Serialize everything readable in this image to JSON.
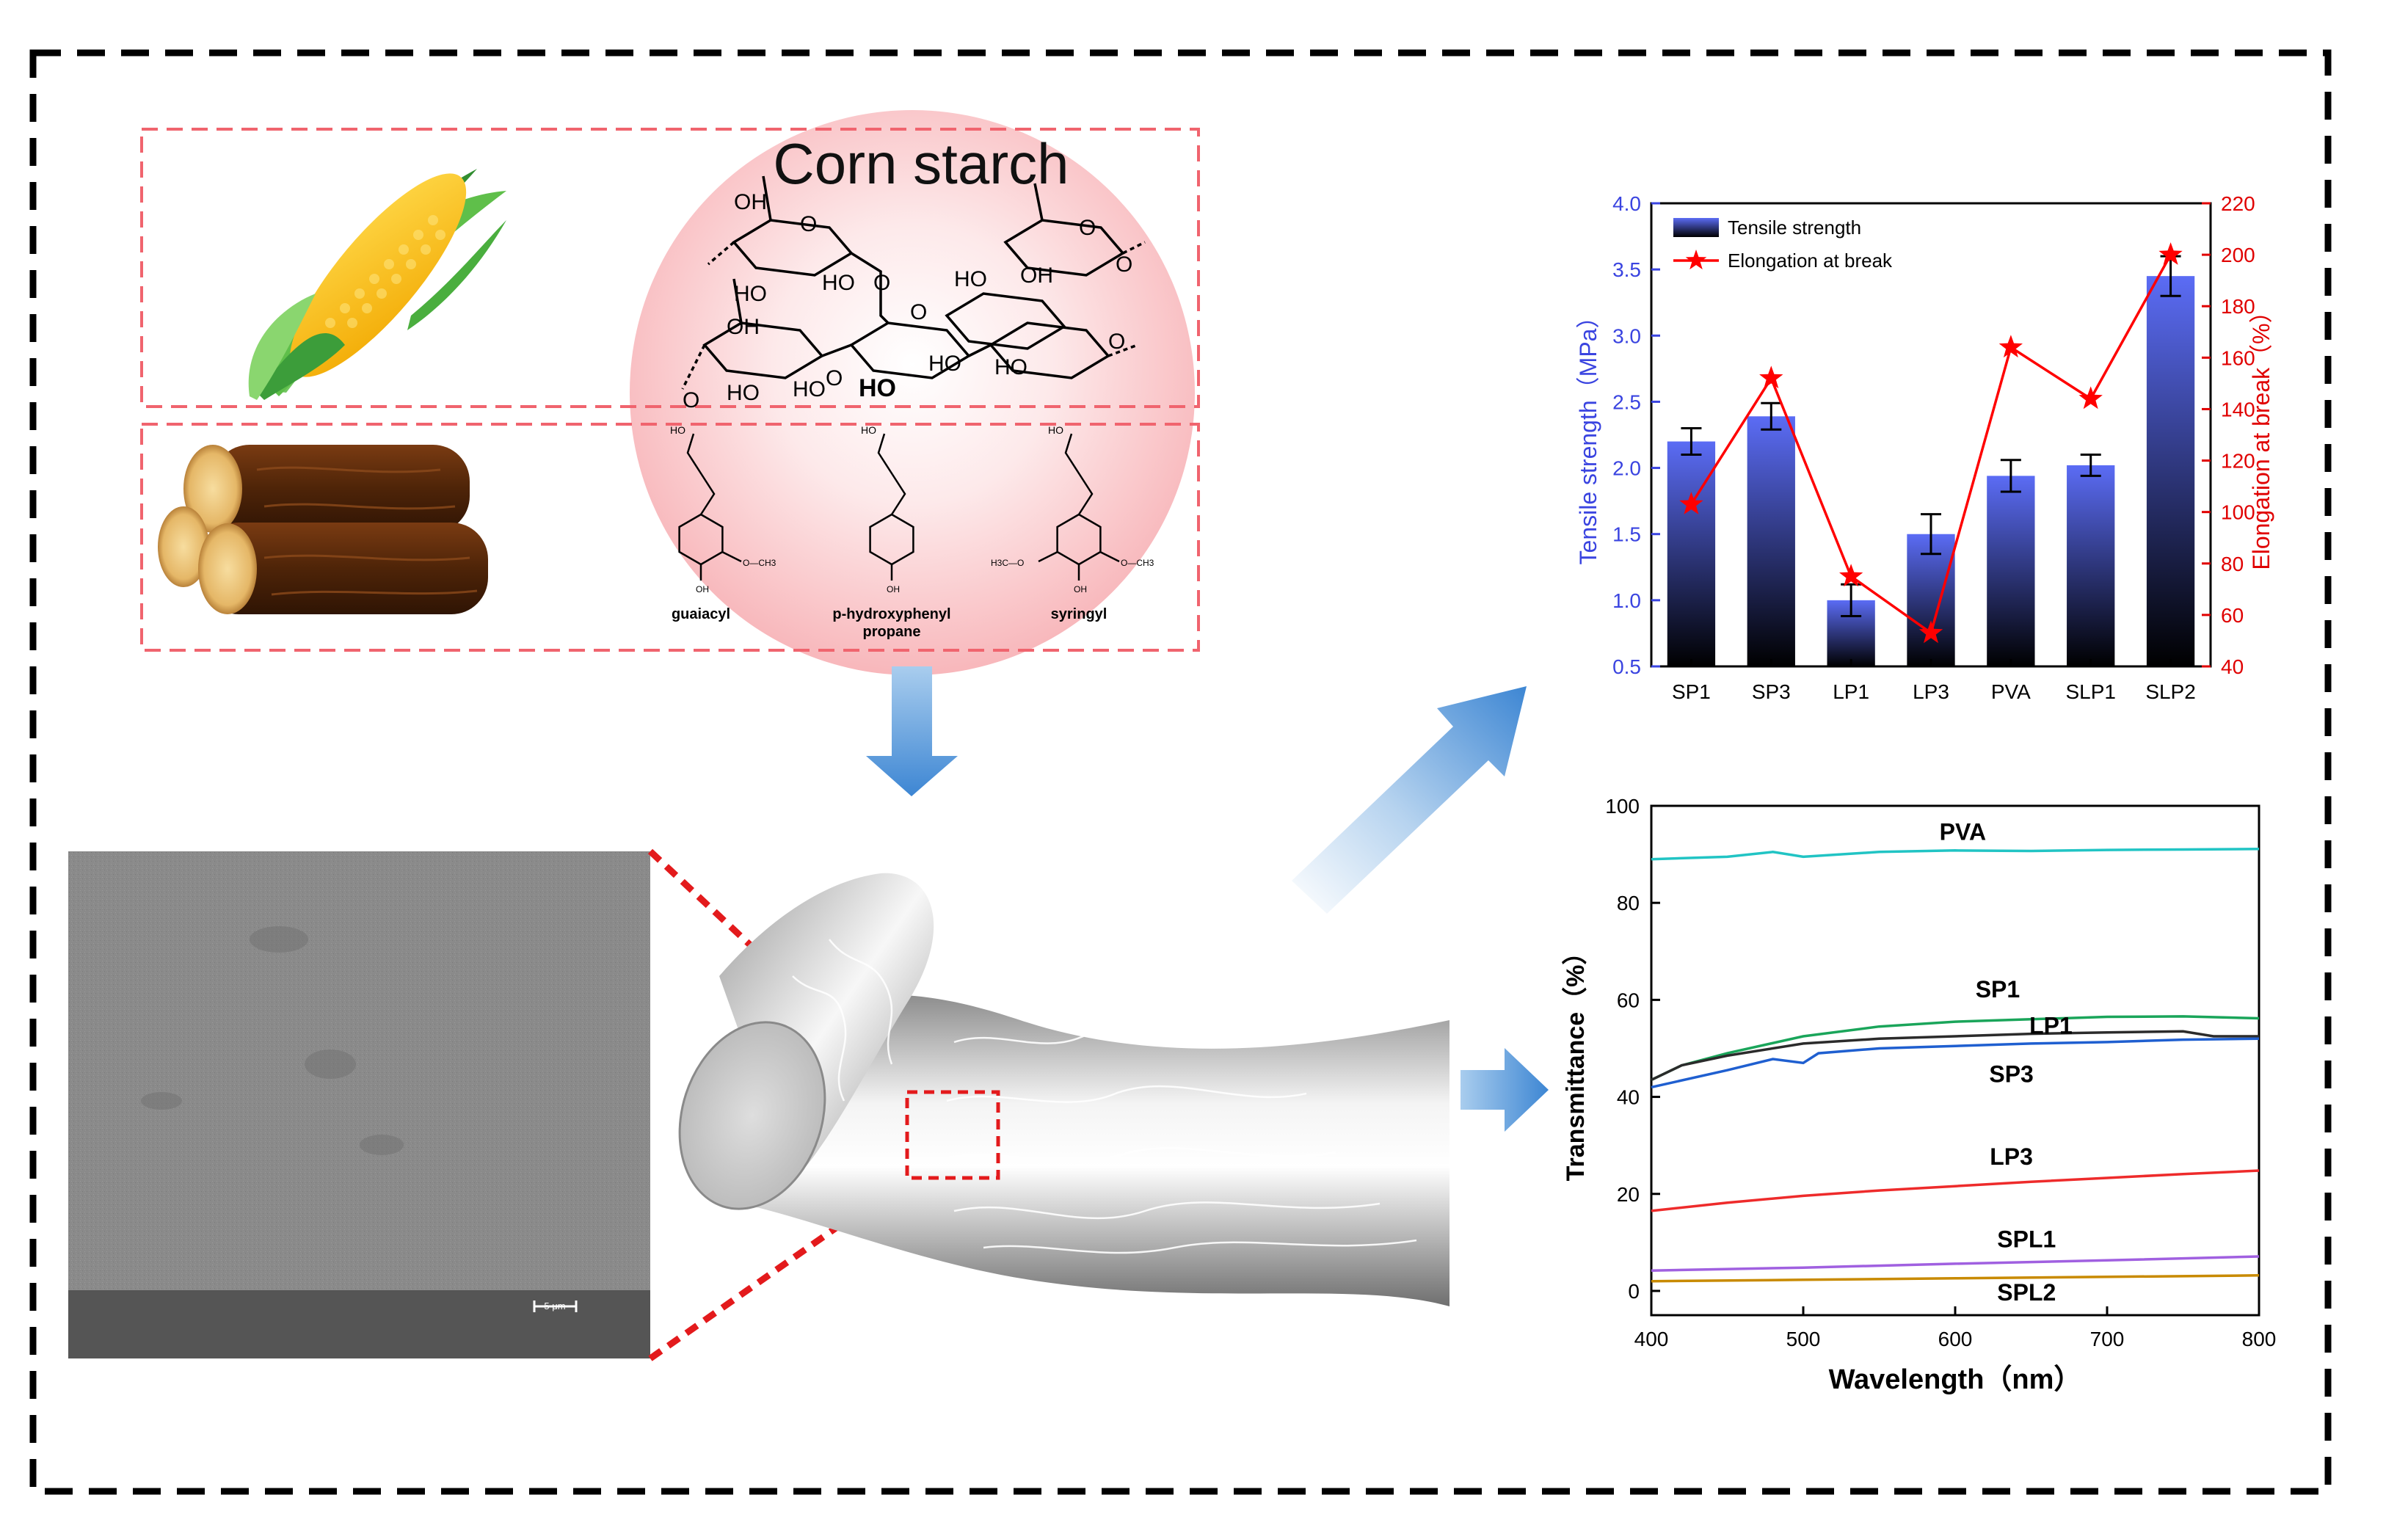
{
  "starch": {
    "title": "Corn starch",
    "oh_labels": [
      "OH",
      "HO",
      "HO",
      "O",
      "O",
      "OH",
      "HO",
      "O",
      "O",
      "O",
      "HO",
      "HO",
      "HO",
      "OH",
      "HO",
      "HO",
      "O",
      "O",
      "O"
    ]
  },
  "lignin": {
    "units": [
      {
        "label": "guaiacyl",
        "label2": "",
        "oh": "HO",
        "ring_oh": "OH",
        "methoxy_right": "O—CH3",
        "methoxy_left": ""
      },
      {
        "label": "p-hydroxyphenyl",
        "label2": "propane",
        "oh": "HO",
        "ring_oh": "OH",
        "methoxy_right": "",
        "methoxy_left": ""
      },
      {
        "label": "syringyl",
        "label2": "",
        "oh": "HO",
        "ring_oh": "OH",
        "methoxy_right": "O—CH3",
        "methoxy_left": "H3C—O"
      }
    ]
  },
  "sem": {
    "scale_bar": "5 μm"
  },
  "colors": {
    "dashed_box": "#f0646e",
    "arrow": "#4f95d8",
    "zoom_line": "#e31a1c",
    "bar_top": "#5b6cf5",
    "bar_bottom": "#000000",
    "elong": "#ff0000",
    "left_axis": "#3a44e0",
    "right_axis": "#e00000"
  },
  "chart_data": [
    {
      "type": "bar",
      "categories": [
        "SP1",
        "SP3",
        "LP1",
        "LP3",
        "PVA",
        "SLP1",
        "SLP2"
      ],
      "series": [
        {
          "name": "Tensile strength",
          "axis": "left",
          "values": [
            2.2,
            2.39,
            1.0,
            1.5,
            1.94,
            2.02,
            3.45
          ],
          "errors": [
            0.1,
            0.1,
            0.12,
            0.15,
            0.12,
            0.08,
            0.15
          ]
        },
        {
          "name": "Elongation at break",
          "axis": "right",
          "type": "line",
          "values": [
            103,
            152,
            75,
            53,
            164,
            144,
            200
          ]
        }
      ],
      "ylabel": "Tensile strength（MPa）",
      "ylabel2": "Elongation at break（%）",
      "ylim": [
        0.5,
        4.0
      ],
      "ylim2": [
        40,
        220
      ],
      "yticks": [
        "0.5",
        "1.0",
        "1.5",
        "2.0",
        "2.5",
        "3.0",
        "3.5",
        "4.0"
      ],
      "yticks2": [
        "40",
        "60",
        "80",
        "100",
        "120",
        "140",
        "160",
        "180",
        "200",
        "220"
      ],
      "legend": [
        "Tensile strength",
        "Elongation at break"
      ],
      "legend_position": "top-left"
    },
    {
      "type": "line",
      "xlabel": "Wavelength（nm）",
      "ylabel": "Transmittance（%）",
      "xlim": [
        400,
        800
      ],
      "ylim": [
        -5,
        100
      ],
      "xticks": [
        "400",
        "500",
        "600",
        "700",
        "800"
      ],
      "yticks": [
        "0",
        "20",
        "40",
        "60",
        "80",
        "100"
      ],
      "series": [
        {
          "name": "PVA",
          "color": "#21c4c4",
          "x": [
            400,
            450,
            480,
            500,
            550,
            600,
            650,
            700,
            750,
            800
          ],
          "y": [
            89,
            89.5,
            90.5,
            89.5,
            90.5,
            90.8,
            90.7,
            90.9,
            91.0,
            91.1
          ]
        },
        {
          "name": "SP1",
          "color": "#1aa55a",
          "x": [
            400,
            420,
            450,
            500,
            550,
            600,
            650,
            700,
            750,
            800
          ],
          "y": [
            43.5,
            46.5,
            49,
            52.5,
            54.5,
            55.5,
            56,
            56.5,
            56.6,
            56.2
          ]
        },
        {
          "name": "LP1",
          "color": "#2b2b2b",
          "x": [
            400,
            420,
            450,
            500,
            550,
            600,
            650,
            700,
            750,
            770,
            800
          ],
          "y": [
            43.5,
            46.5,
            48.5,
            51,
            52,
            52.5,
            53,
            53.3,
            53.5,
            52.5,
            52.5
          ]
        },
        {
          "name": "SP3",
          "color": "#1f5fd0",
          "x": [
            400,
            450,
            480,
            500,
            510,
            550,
            600,
            650,
            700,
            750,
            800
          ],
          "y": [
            42,
            45.5,
            47.8,
            47.0,
            49,
            50,
            50.5,
            51,
            51.3,
            51.8,
            52
          ]
        },
        {
          "name": "LP3",
          "color": "#ee2b2b",
          "x": [
            400,
            450,
            500,
            550,
            600,
            650,
            700,
            750,
            800
          ],
          "y": [
            16.5,
            18.2,
            19.6,
            20.7,
            21.6,
            22.5,
            23.3,
            24.1,
            24.8
          ]
        },
        {
          "name": "SPL1",
          "color": "#a060e0",
          "x": [
            400,
            500,
            600,
            700,
            800
          ],
          "y": [
            4.2,
            4.8,
            5.6,
            6.3,
            7.1
          ]
        },
        {
          "name": "SPL2",
          "color": "#c88a00",
          "x": [
            400,
            500,
            600,
            700,
            800
          ],
          "y": [
            2.0,
            2.3,
            2.6,
            2.9,
            3.2
          ]
        }
      ],
      "series_labels": [
        "PVA",
        "SP1",
        "LP1",
        "SP3",
        "LP3",
        "SPL1",
        "SPL2"
      ]
    }
  ]
}
